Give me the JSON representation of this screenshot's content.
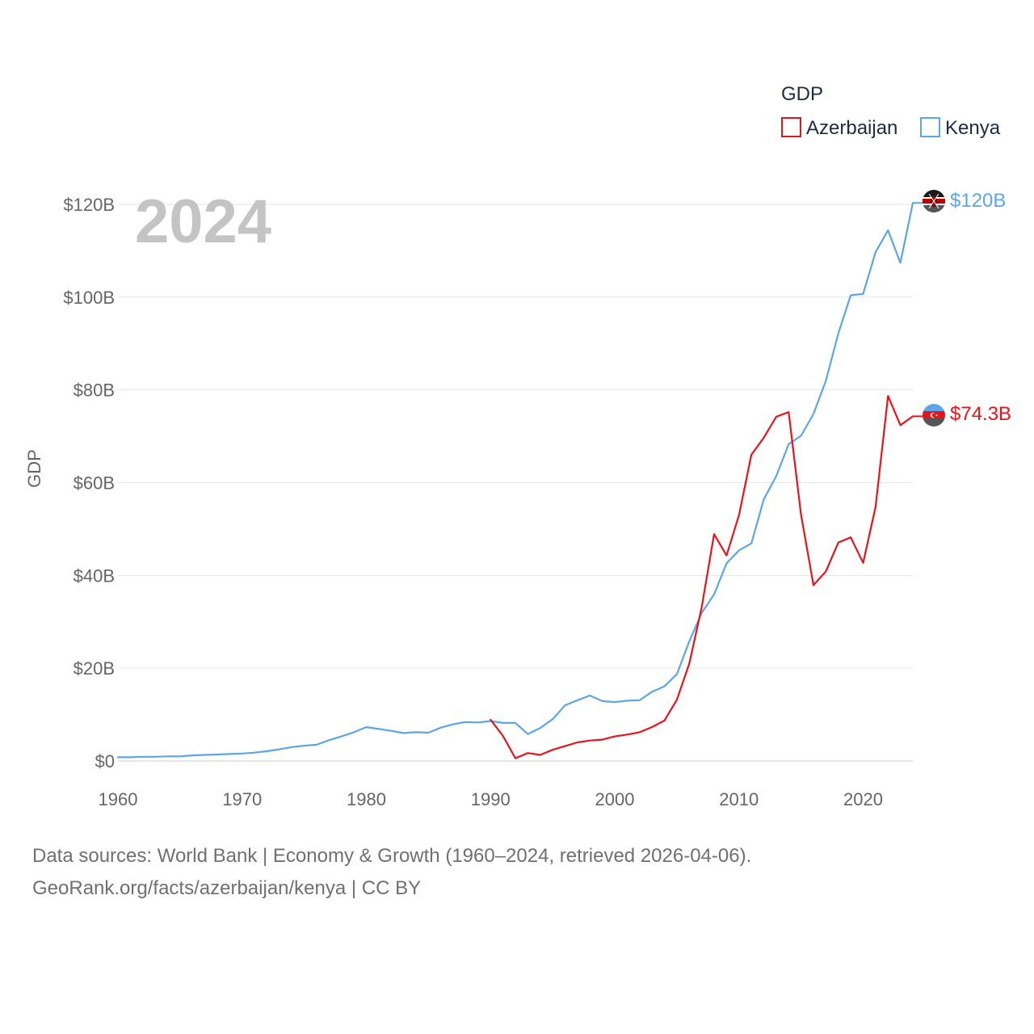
{
  "chart_data": {
    "type": "line",
    "title": "",
    "year_overlay": "2024",
    "xlabel": "",
    "ylabel": "GDP",
    "xlim": [
      1960,
      2024
    ],
    "ylim": [
      0,
      130
    ],
    "x_ticks": [
      1960,
      1970,
      1980,
      1990,
      2000,
      2010,
      2020
    ],
    "y_ticks": [
      {
        "value": 0,
        "label": "$0"
      },
      {
        "value": 20,
        "label": "$20B"
      },
      {
        "value": 40,
        "label": "$40B"
      },
      {
        "value": 60,
        "label": "$60B"
      },
      {
        "value": 80,
        "label": "$80B"
      },
      {
        "value": 100,
        "label": "$100B"
      },
      {
        "value": 120,
        "label": "$120B"
      }
    ],
    "legend": {
      "title": "GDP",
      "position": "top-right"
    },
    "series": [
      {
        "name": "Azerbaijan",
        "color": "#e8141c",
        "end_label": "$74.3B",
        "flag": "azerbaijan-flag",
        "x": [
          1990,
          1991,
          1992,
          1993,
          1994,
          1995,
          1996,
          1997,
          1998,
          1999,
          2000,
          2001,
          2002,
          2003,
          2004,
          2005,
          2006,
          2007,
          2008,
          2009,
          2010,
          2011,
          2012,
          2013,
          2014,
          2015,
          2016,
          2017,
          2018,
          2019,
          2020,
          2021,
          2022,
          2023,
          2024
        ],
        "values": [
          8.9,
          5.4,
          0.6,
          1.7,
          1.3,
          2.4,
          3.2,
          4.0,
          4.4,
          4.6,
          5.3,
          5.7,
          6.2,
          7.3,
          8.7,
          13.2,
          21.0,
          33.1,
          48.9,
          44.3,
          53.0,
          66.0,
          69.7,
          74.2,
          75.2,
          53.1,
          37.9,
          40.9,
          47.1,
          48.2,
          42.7,
          54.8,
          78.7,
          72.4,
          74.3
        ]
      },
      {
        "name": "Kenya",
        "color": "#5ca6e6",
        "end_label": "$120B",
        "flag": "kenya-flag",
        "x": [
          1960,
          1961,
          1962,
          1963,
          1964,
          1965,
          1966,
          1967,
          1968,
          1969,
          1970,
          1971,
          1972,
          1973,
          1974,
          1975,
          1976,
          1977,
          1978,
          1979,
          1980,
          1981,
          1982,
          1983,
          1984,
          1985,
          1986,
          1987,
          1988,
          1989,
          1990,
          1991,
          1992,
          1993,
          1994,
          1995,
          1996,
          1997,
          1998,
          1999,
          2000,
          2001,
          2002,
          2003,
          2004,
          2005,
          2006,
          2007,
          2008,
          2009,
          2010,
          2011,
          2012,
          2013,
          2014,
          2015,
          2016,
          2017,
          2018,
          2019,
          2020,
          2021,
          2022,
          2023,
          2024
        ],
        "values": [
          0.8,
          0.8,
          0.9,
          0.9,
          1.0,
          1.0,
          1.2,
          1.3,
          1.4,
          1.5,
          1.6,
          1.8,
          2.1,
          2.5,
          3.0,
          3.3,
          3.5,
          4.5,
          5.3,
          6.2,
          7.3,
          6.9,
          6.5,
          6.0,
          6.2,
          6.1,
          7.2,
          7.9,
          8.4,
          8.3,
          8.6,
          8.2,
          8.2,
          5.8,
          7.1,
          9.0,
          12.0,
          13.1,
          14.1,
          12.9,
          12.7,
          13.0,
          13.1,
          14.9,
          16.1,
          18.7,
          25.8,
          31.9,
          35.9,
          42.6,
          45.4,
          46.9,
          56.4,
          61.4,
          68.3,
          70.1,
          74.8,
          82.0,
          92.2,
          100.4,
          100.7,
          109.7,
          114.4,
          107.4,
          120.3
        ]
      }
    ]
  },
  "footer": {
    "sources_line": "Data sources: World Bank | Economy & Growth (1960–2024, retrieved 2026-04-06).",
    "credit_line": "GeoRank.org/facts/azerbaijan/kenya | CC BY"
  }
}
